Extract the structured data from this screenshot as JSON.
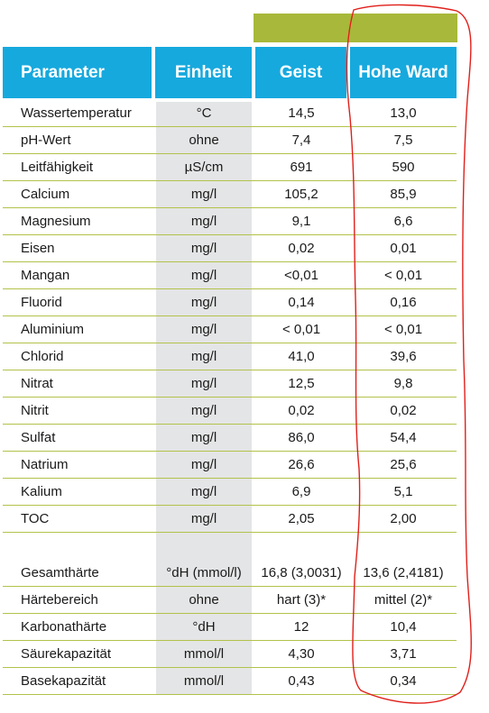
{
  "header": {
    "parameter": "Parameter",
    "einheit": "Einheit",
    "geist": "Geist",
    "hohe_ward": "Hohe Ward"
  },
  "colors": {
    "header_blue": "#16a9de",
    "green_bar": "#a8b83a",
    "row_rule": "#b3c24a",
    "unit_column_gray": "#e4e5e6",
    "annotation_red": "#e0201b"
  },
  "rows": [
    {
      "param": "Wassertemperatur",
      "unit": "°C",
      "geist": "14,5",
      "ward": "13,0"
    },
    {
      "param": "pH-Wert",
      "unit": "ohne",
      "geist": "7,4",
      "ward": "7,5"
    },
    {
      "param": "Leitfähigkeit",
      "unit": "µS/cm",
      "geist": "691",
      "ward": "590"
    },
    {
      "param": "Calcium",
      "unit": "mg/l",
      "geist": "105,2",
      "ward": "85,9"
    },
    {
      "param": "Magnesium",
      "unit": "mg/l",
      "geist": "9,1",
      "ward": "6,6"
    },
    {
      "param": "Eisen",
      "unit": "mg/l",
      "geist": "0,02",
      "ward": "0,01"
    },
    {
      "param": "Mangan",
      "unit": "mg/l",
      "geist": "<0,01",
      "ward": "< 0,01"
    },
    {
      "param": "Fluorid",
      "unit": "mg/l",
      "geist": "0,14",
      "ward": "0,16"
    },
    {
      "param": "Aluminium",
      "unit": "mg/l",
      "geist": "< 0,01",
      "ward": "< 0,01"
    },
    {
      "param": "Chlorid",
      "unit": "mg/l",
      "geist": "41,0",
      "ward": "39,6"
    },
    {
      "param": "Nitrat",
      "unit": "mg/l",
      "geist": "12,5",
      "ward": "9,8"
    },
    {
      "param": "Nitrit",
      "unit": "mg/l",
      "geist": "0,02",
      "ward": "0,02"
    },
    {
      "param": "Sulfat",
      "unit": "mg/l",
      "geist": "86,0",
      "ward": "54,4"
    },
    {
      "param": "Natrium",
      "unit": "mg/l",
      "geist": "26,6",
      "ward": "25,6"
    },
    {
      "param": "Kalium",
      "unit": "mg/l",
      "geist": "6,9",
      "ward": "5,1"
    },
    {
      "param": "TOC",
      "unit": "mg/l",
      "geist": "2,05",
      "ward": "2,00"
    },
    {
      "param": "Gesamthärte",
      "unit": "°dH (mmol/l)",
      "geist": "16,8 (3,0031)",
      "ward": "13,6 (2,4181)"
    },
    {
      "param": "Härtebereich",
      "unit": "ohne",
      "geist": "hart (3)*",
      "ward": "mittel (2)*"
    },
    {
      "param": "Karbonathärte",
      "unit": "°dH",
      "geist": "12",
      "ward": "10,4"
    },
    {
      "param": "Säurekapazität",
      "unit": "mmol/l",
      "geist": "4,30",
      "ward": "3,71"
    },
    {
      "param": "Basekapazität",
      "unit": "mmol/l",
      "geist": "0,43",
      "ward": "0,34"
    }
  ]
}
